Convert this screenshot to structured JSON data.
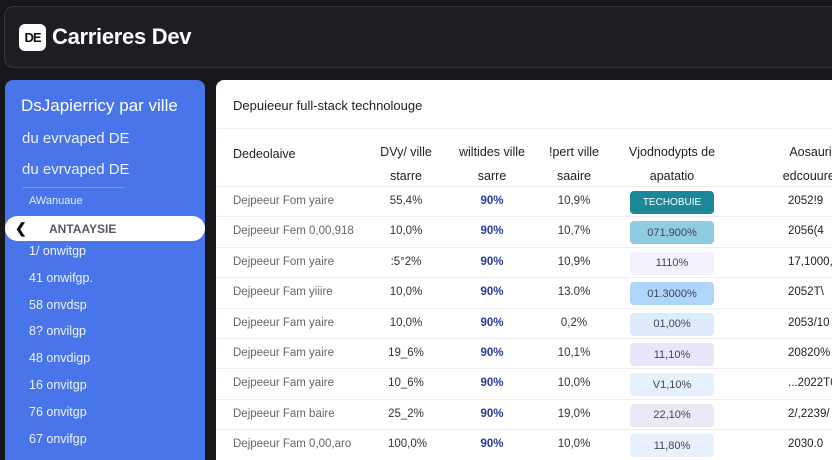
{
  "header": {
    "logo": "DE",
    "title": "Carrieres Dev"
  },
  "sidebar": {
    "title": "DsJapierricy par ville",
    "subtitles": [
      "du evrvaped DE",
      "du evrvaped DE"
    ],
    "section": "AWanuaue",
    "active": "ANTAAYSIE",
    "items": [
      "1/ onwitgp",
      "41 onwifgp.",
      "58 onvdsp",
      "8? onvilgp",
      "48 onvdigp",
      "16 onvitgp",
      "76 onvitgp",
      "67 onvifgp"
    ]
  },
  "main": {
    "title": "Depuieeur full-stack technolouge",
    "headers": [
      "Dedeolaive",
      "DVy/ ville\nstarre",
      "wiltides ville\nsarre",
      "!pert ville\nsaaire",
      "Vjodnodypts de\napatatio",
      "Aosaurio\nedcouurerit"
    ],
    "badge_colors": [
      "#1b8799",
      "#8fcbe2",
      "#f3f2fc",
      "#aed6f8",
      "#ddebfd",
      "#e9e5fa",
      "#e7f0fd",
      "#ece8f6",
      "#e8f0fc"
    ],
    "rows": [
      [
        "Dejpeeur Fom yaire",
        "55,4%",
        "90%",
        "10,9%",
        "TECHOBUIE",
        "2052!9"
      ],
      [
        "Dejpeeur Fem 0,00,918",
        "10,0%",
        "90%",
        "10,7%",
        "071,900%",
        "2056(4"
      ],
      [
        "Dejpeeur Fom yaire",
        ":5°2%",
        "90%",
        "10,9%",
        "1110%",
        "17,1000,0"
      ],
      [
        "Dejpeeur Fam yiiire",
        "10,0%",
        "90%",
        "13.0%",
        "01.3000%",
        "2052T\\"
      ],
      [
        "Dejpeeur Fam yaire",
        "10,0%",
        "90%",
        "0,2%",
        "01,00%",
        "2053/10"
      ],
      [
        "Dejpeeur Fam yaire",
        "19_6%",
        "90%",
        "10,1%",
        "11,10%",
        "20820%"
      ],
      [
        "Dejpeeur Fam yaire",
        "10_6%",
        "90%",
        "10,0%",
        "V1,10%",
        "...2022T0"
      ],
      [
        "Dejpeeur Fam baire",
        "25_2%",
        "90%",
        "19,0%",
        "22,10%",
        "2/,2239/"
      ],
      [
        "Dejpeeur Fam 0,00,aro",
        "100,0%",
        "90%",
        "10,0%",
        "11,80%",
        "2030.0"
      ]
    ]
  }
}
